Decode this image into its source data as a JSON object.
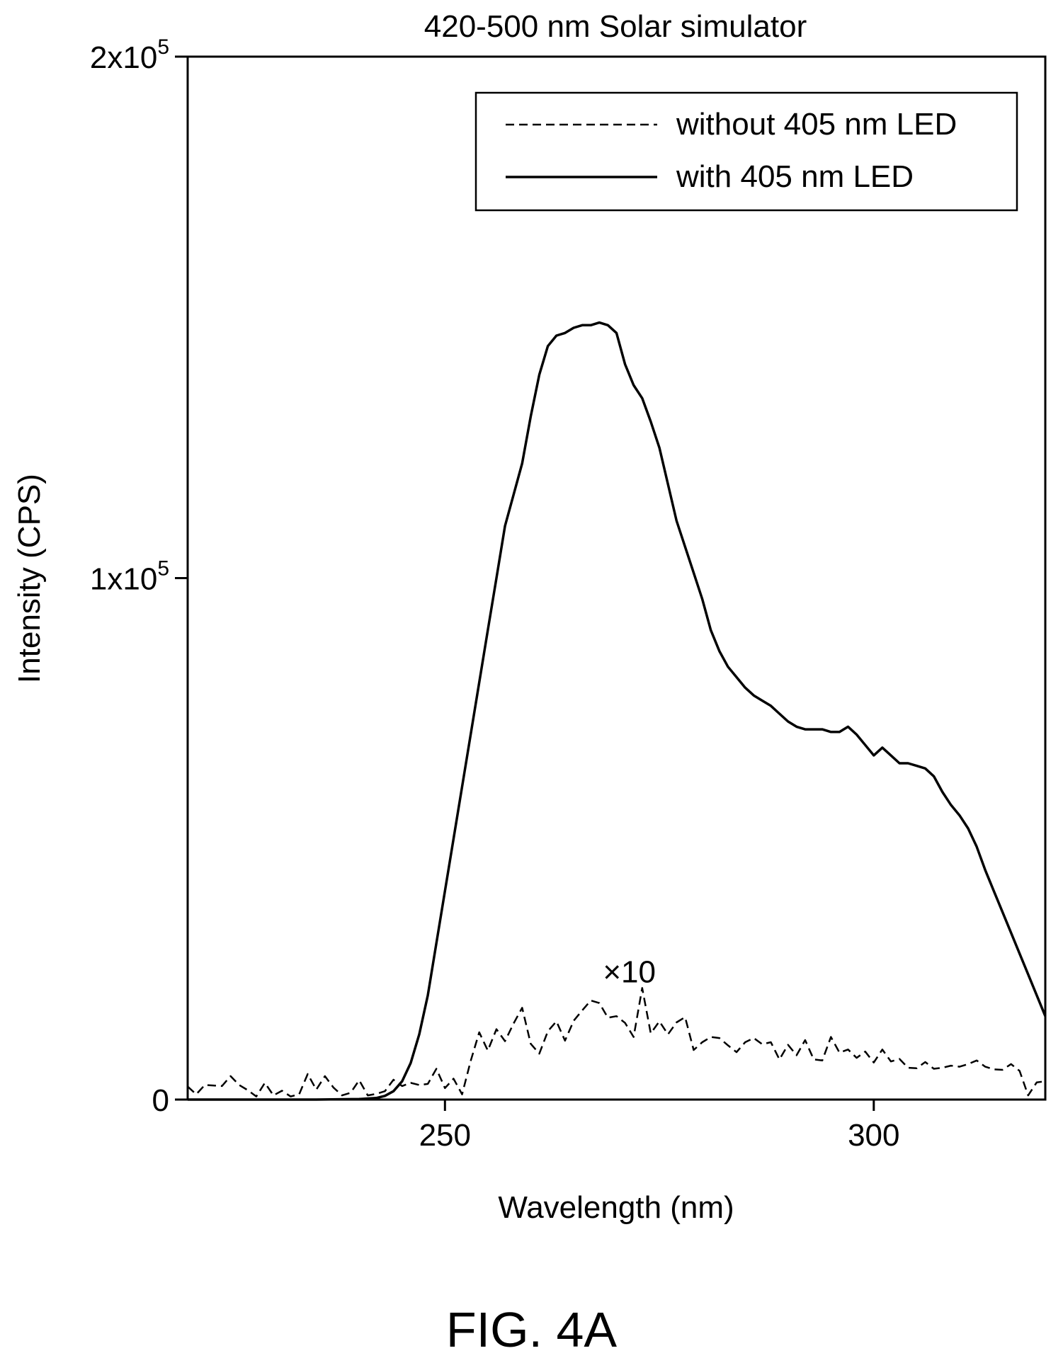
{
  "figure_label": "FIG. 4A",
  "chart_data": {
    "type": "line",
    "title": "420-500 nm Solar simulator",
    "xlabel": "Wavelength (nm)",
    "ylabel": "Intensity (CPS)",
    "xlim": [
      220,
      320
    ],
    "ylim": [
      0,
      200000
    ],
    "x_ticks": [
      250,
      300
    ],
    "x_tick_labels": [
      "250",
      "300"
    ],
    "y_ticks": [
      0,
      100000,
      200000
    ],
    "y_tick_labels": [
      {
        "base": "0",
        "exp": ""
      },
      {
        "base": "1x10",
        "exp": "5"
      },
      {
        "base": "2x10",
        "exp": "5"
      }
    ],
    "grid": false,
    "legend_position": "top-right",
    "annotation": "×10",
    "annotation_at": [
      271.5,
      22500
    ],
    "series": [
      {
        "name": "without 405 nm LED",
        "style": "dashed",
        "color": "#000000",
        "x": [
          220,
          221,
          222,
          223,
          224,
          225,
          226,
          227,
          228,
          229,
          230,
          231,
          232,
          233,
          234,
          235,
          236,
          237,
          238,
          239,
          240,
          241,
          242,
          243,
          244,
          245,
          246,
          247,
          248,
          249,
          250,
          251,
          252,
          253,
          254,
          255,
          256,
          257,
          258,
          259,
          260,
          261,
          262,
          263,
          264,
          265,
          266,
          267,
          268,
          269,
          270,
          271,
          272,
          273,
          274,
          275,
          276,
          277,
          278,
          279,
          280,
          281,
          282,
          283,
          284,
          285,
          286,
          287,
          288,
          289,
          290,
          291,
          292,
          293,
          294,
          295,
          296,
          297,
          298,
          299,
          300,
          301,
          302,
          303,
          304,
          305,
          306,
          307,
          308,
          309,
          310,
          311,
          312,
          313,
          314,
          315,
          316,
          317,
          318,
          319,
          320
        ],
        "values": [
          2500,
          1000,
          2800,
          2700,
          2600,
          4500,
          2800,
          1800,
          600,
          3200,
          800,
          1700,
          600,
          1000,
          4900,
          1900,
          4500,
          2300,
          800,
          1300,
          3700,
          800,
          1100,
          1600,
          3800,
          2600,
          3200,
          2800,
          3000,
          5900,
          2200,
          4000,
          1000,
          7400,
          12900,
          9400,
          13500,
          11200,
          14600,
          17600,
          10700,
          8800,
          13100,
          15000,
          11300,
          15100,
          17100,
          19000,
          18500,
          15700,
          16000,
          14700,
          12000,
          21400,
          12700,
          15000,
          12500,
          14800,
          15800,
          9500,
          11000,
          12000,
          11800,
          10400,
          9100,
          11000,
          11800,
          10600,
          11000,
          7700,
          10500,
          8500,
          11400,
          7700,
          7500,
          12000,
          9000,
          9600,
          8000,
          9200,
          7100,
          9600,
          7300,
          7800,
          6100,
          6000,
          7200,
          5900,
          6100,
          6500,
          6300,
          6800,
          7500,
          6300,
          5800,
          5700,
          6800,
          5500,
          800,
          3300,
          3500
        ]
      },
      {
        "name": "with 405 nm LED",
        "style": "solid",
        "color": "#000000",
        "x": [
          220,
          225,
          230,
          235,
          240,
          242,
          243,
          244,
          245,
          246,
          247,
          248,
          249,
          250,
          251,
          252,
          253,
          254,
          255,
          256,
          257,
          258,
          259,
          260,
          261,
          262,
          263,
          264,
          265,
          266,
          267,
          268,
          269,
          270,
          271,
          272,
          273,
          274,
          275,
          276,
          277,
          278,
          279,
          280,
          281,
          282,
          283,
          284,
          285,
          286,
          287,
          288,
          289,
          290,
          291,
          292,
          293,
          294,
          295,
          296,
          297,
          298,
          299,
          300,
          301,
          302,
          303,
          304,
          305,
          306,
          307,
          308,
          309,
          310,
          311,
          312,
          313,
          314,
          315,
          316,
          317,
          318,
          319,
          320
        ],
        "values": [
          0,
          0,
          0,
          0,
          100,
          300,
          700,
          1600,
          3500,
          7000,
          12500,
          20000,
          30000,
          40000,
          50000,
          60000,
          70000,
          80000,
          90000,
          100000,
          110000,
          116000,
          122000,
          131000,
          139000,
          144500,
          146500,
          147000,
          148000,
          148500,
          148500,
          149000,
          148500,
          147000,
          141000,
          137000,
          134500,
          130000,
          125000,
          118000,
          111000,
          106000,
          101000,
          96000,
          90000,
          86000,
          83000,
          81000,
          79000,
          77500,
          76500,
          75500,
          74000,
          72500,
          71500,
          71000,
          71000,
          71000,
          70500,
          70500,
          71500,
          70000,
          68000,
          66000,
          67500,
          66000,
          64500,
          64500,
          64000,
          63500,
          62000,
          59000,
          56500,
          54500,
          52000,
          48500,
          44000,
          40000,
          36000,
          32000,
          28000,
          24000,
          20000,
          16000
        ]
      }
    ]
  }
}
